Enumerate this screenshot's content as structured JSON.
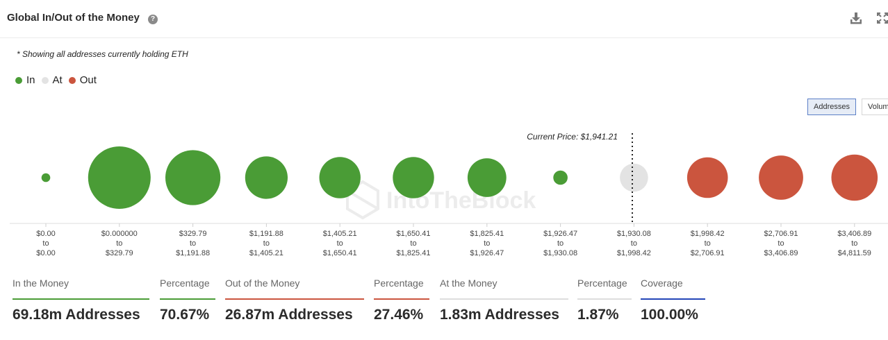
{
  "header": {
    "title": "Global In/Out of the Money",
    "help_glyph": "?"
  },
  "note": "* Showing all addresses currently holding ETH",
  "legend": [
    {
      "label": "In",
      "color": "#4a9c36"
    },
    {
      "label": "At",
      "color": "#e3e3e3"
    },
    {
      "label": "Out",
      "color": "#cb553e"
    }
  ],
  "toggles": {
    "addresses": "Addresses",
    "volume": "Volum"
  },
  "watermark": "IntoTheBlock",
  "chart_data": {
    "type": "scatter",
    "encoding": "bubble size = number of addresses",
    "current_price_label": "Current Price: $1,941.21",
    "current_price": 1941.21,
    "connector": "to",
    "buckets": [
      {
        "low": "$0.00",
        "high": "$0.00",
        "status": "In"
      },
      {
        "low": "$0.000000",
        "high": "$329.79",
        "status": "In"
      },
      {
        "low": "$329.79",
        "high": "$1,191.88",
        "status": "In"
      },
      {
        "low": "$1,191.88",
        "high": "$1,405.21",
        "status": "In"
      },
      {
        "low": "$1,405.21",
        "high": "$1,650.41",
        "status": "In"
      },
      {
        "low": "$1,650.41",
        "high": "$1,825.41",
        "status": "In"
      },
      {
        "low": "$1,825.41",
        "high": "$1,926.47",
        "status": "In"
      },
      {
        "low": "$1,926.47",
        "high": "$1,930.08",
        "status": "In"
      },
      {
        "low": "$1,930.08",
        "high": "$1,998.42",
        "status": "At"
      },
      {
        "low": "$1,998.42",
        "high": "$2,706.91",
        "status": "Out"
      },
      {
        "low": "$2,706.91",
        "high": "$3,406.89",
        "status": "Out"
      },
      {
        "low": "$3,406.89",
        "high": "$4,811.59",
        "status": "Out"
      }
    ],
    "relative_size": [
      0.14,
      1.0,
      0.88,
      0.68,
      0.66,
      0.66,
      0.62,
      0.23,
      0.45,
      0.65,
      0.71,
      0.74
    ]
  },
  "stats": [
    {
      "label": "In the Money",
      "value": "69.18m Addresses",
      "color": "#4a9c36"
    },
    {
      "label": "Percentage",
      "value": "70.67%",
      "color": "#4a9c36"
    },
    {
      "label": "Out of the Money",
      "value": "26.87m Addresses",
      "color": "#cb553e"
    },
    {
      "label": "Percentage",
      "value": "27.46%",
      "color": "#cb553e"
    },
    {
      "label": "At the Money",
      "value": "1.83m Addresses",
      "color": "#dddddd"
    },
    {
      "label": "Percentage",
      "value": "1.87%",
      "color": "#dddddd"
    },
    {
      "label": "Coverage",
      "value": "100.00%",
      "color": "#2446b8"
    }
  ]
}
